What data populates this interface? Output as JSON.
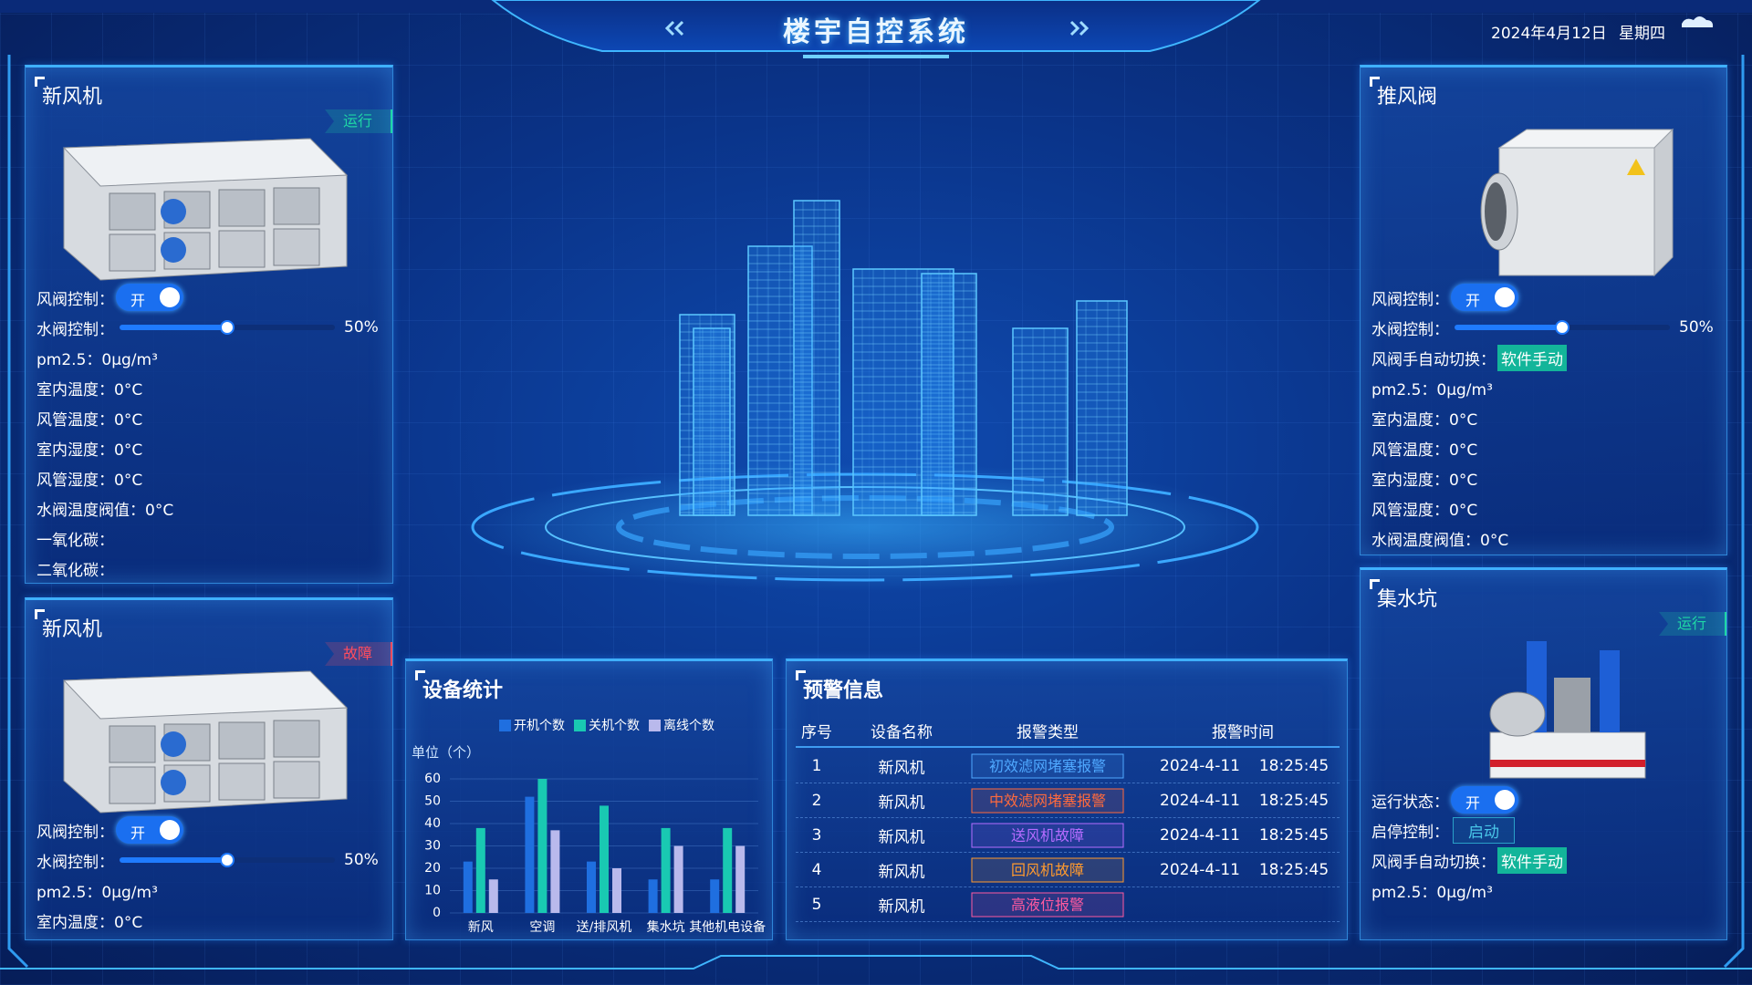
{
  "header": {
    "title": "楼宇自控系统",
    "date": "2024年4月12日",
    "weekday": "星期四"
  },
  "panels": [
    {
      "title": "新风机",
      "status": "运行",
      "status_color": "#1fd6a6",
      "rows": [
        {
          "label": "风阀控制：",
          "switch": "开"
        },
        {
          "label": "水阀控制：",
          "slider": {
            "value": 50,
            "label": "50%"
          }
        },
        {
          "text": "pm2.5：0μg/m³"
        },
        {
          "text": "室内温度：0°C"
        },
        {
          "text": "风管温度：0°C"
        },
        {
          "text": "室内湿度：0°C"
        },
        {
          "text": "风管湿度：0°C"
        },
        {
          "text": "水阀温度阀值：0°C"
        },
        {
          "text": "一氧化碳："
        },
        {
          "text": "二氧化碳："
        }
      ]
    },
    {
      "title": "新风机",
      "status": "故障",
      "status_color": "#ff4d5e",
      "rows": [
        {
          "label": "风阀控制：",
          "switch": "开"
        },
        {
          "label": "水阀控制：",
          "slider": {
            "value": 50,
            "label": "50%"
          }
        },
        {
          "text": "pm2.5：0μg/m³"
        },
        {
          "text": "室内温度：0°C"
        }
      ]
    },
    {
      "title": "推风阀",
      "rows": [
        {
          "label": "风阀控制：",
          "switch": "开"
        },
        {
          "label": "水阀控制：",
          "slider": {
            "value": 50,
            "label": "50%"
          }
        },
        {
          "label": "风阀手自动切换：",
          "badge": "软件手动"
        },
        {
          "text": "pm2.5：0μg/m³"
        },
        {
          "text": "室内温度：0°C"
        },
        {
          "text": "风管温度：0°C"
        },
        {
          "text": "室内湿度：0°C"
        },
        {
          "text": "风管湿度：0°C"
        },
        {
          "text": "水阀温度阀值：0°C"
        }
      ]
    },
    {
      "title": "集水坑",
      "status": "运行",
      "status_color": "#1fd6a6",
      "rows": [
        {
          "label": "运行状态：",
          "switch": "开"
        },
        {
          "label": "启停控制：",
          "button": "启动"
        },
        {
          "label": "风阀手自动切换：",
          "badge": "软件手动"
        },
        {
          "text": "pm2.5：0μg/m³"
        }
      ]
    }
  ],
  "chart_data": {
    "type": "bar",
    "title": "设备统计",
    "unit_label": "单位（个）",
    "categories": [
      "新风",
      "空调",
      "送/排风机",
      "集水坑",
      "其他机电设备"
    ],
    "series": [
      {
        "name": "开机个数",
        "color": "#1f6fe0",
        "values": [
          23,
          52,
          23,
          15,
          15
        ]
      },
      {
        "name": "关机个数",
        "color": "#19c9b2",
        "values": [
          38,
          60,
          48,
          38,
          38
        ]
      },
      {
        "name": "离线个数",
        "color": "#b9b9ec",
        "values": [
          15,
          37,
          20,
          30,
          30
        ]
      }
    ],
    "ylim": [
      0,
      60
    ],
    "yticks": [
      0,
      10,
      20,
      30,
      40,
      50,
      60
    ],
    "grid": true
  },
  "alarms": {
    "title": "预警信息",
    "columns": [
      "序号",
      "设备名称",
      "报警类型",
      "报警时间"
    ],
    "rows": [
      {
        "no": 1,
        "device": "新风机",
        "alarm": "初效滤网堵塞报警",
        "alarm_color": "#4fa8ff",
        "date": "2024-4-11",
        "time": "18:25:45"
      },
      {
        "no": 2,
        "device": "新风机",
        "alarm": "中效滤网堵塞报警",
        "alarm_color": "#ff6a3d",
        "date": "2024-4-11",
        "time": "18:25:45"
      },
      {
        "no": 3,
        "device": "新风机",
        "alarm": "送风机故障",
        "alarm_color": "#b56cff",
        "date": "2024-4-11",
        "time": "18:25:45"
      },
      {
        "no": 4,
        "device": "新风机",
        "alarm": "回风机故障",
        "alarm_color": "#ff9a2e",
        "date": "2024-4-11",
        "time": "18:25:45"
      },
      {
        "no": 5,
        "device": "新风机",
        "alarm": "高液位报警",
        "alarm_color": "#ff5aa0"
      }
    ]
  }
}
